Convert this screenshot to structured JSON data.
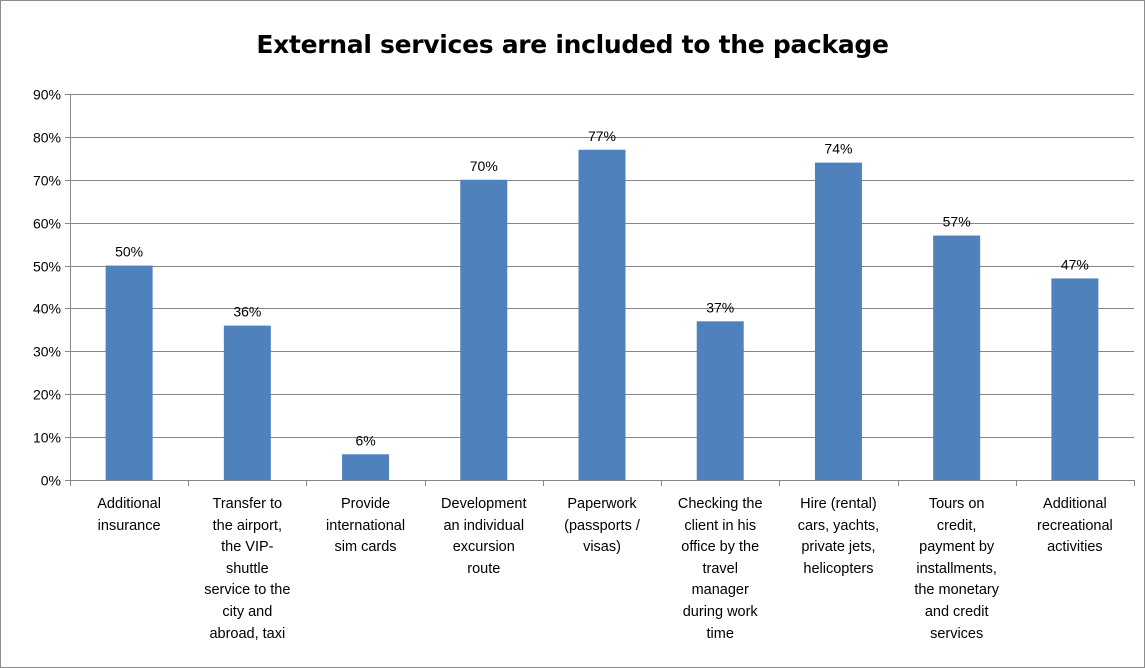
{
  "chart_data": {
    "type": "bar",
    "title": "External services are included to the package",
    "categories": [
      "Additional\ninsurance",
      "Transfer to\nthe airport,\nthe VIP-\nshuttle\nservice to the\ncity and\nabroad, taxi",
      "Provide\ninternational\nsim cards",
      "Development\nan individual\nexcursion\nroute",
      "Paperwork\n(passports /\nvisas)",
      "Checking the\nclient in his\noffice by the\ntravel\nmanager\nduring work\ntime",
      "Hire (rental)\ncars, yachts,\nprivate jets,\nhelicopters",
      "Tours on\ncredit,\npayment by\ninstallments,\nthe monetary\nand credit\nservices",
      "Additional\nrecreational\nactivities"
    ],
    "values": [
      50,
      36,
      6,
      70,
      77,
      37,
      74,
      57,
      47
    ],
    "data_labels": [
      "50%",
      "36%",
      "6%",
      "70%",
      "77%",
      "37%",
      "74%",
      "57%",
      "47%"
    ],
    "y_ticks": [
      "0%",
      "10%",
      "20%",
      "30%",
      "40%",
      "50%",
      "60%",
      "70%",
      "80%",
      "90%"
    ],
    "ylim": [
      0,
      90
    ],
    "grid": true,
    "bar_color": "#4f81bd",
    "gridline_color": "#868686"
  }
}
